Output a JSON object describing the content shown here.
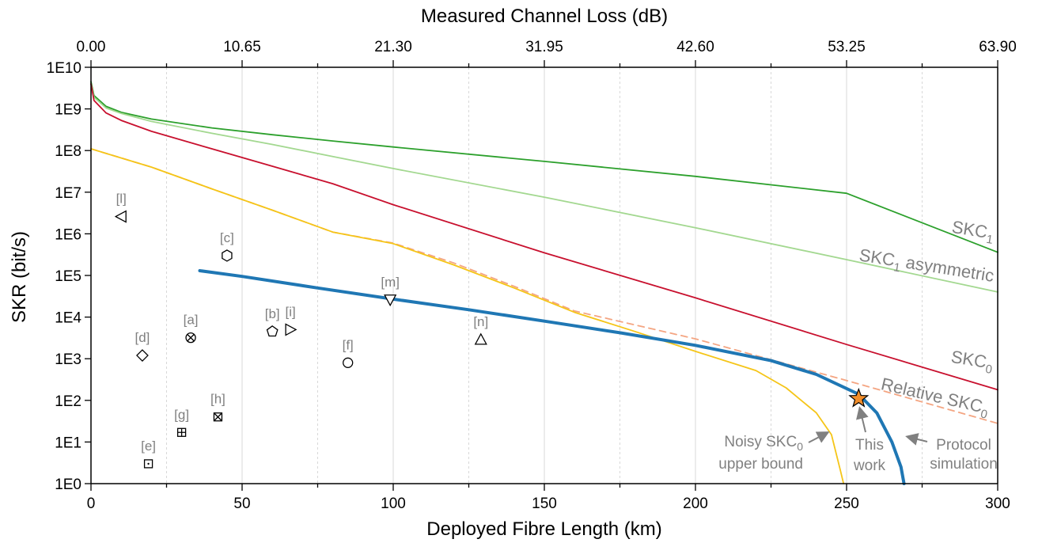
{
  "chart_data": {
    "type": "line",
    "xlabel": "Deployed Fibre Length (km)",
    "x2label": "Measured Channel Loss (dB)",
    "ylabel": "SKR (bit/s)",
    "xlim": [
      0,
      300
    ],
    "x2lim": [
      0,
      63.9
    ],
    "ylim": [
      1,
      10000000000
    ],
    "yscale": "log",
    "grid": "vertical",
    "x_ticks": [
      "0",
      "50",
      "100",
      "150",
      "200",
      "250",
      "300"
    ],
    "x2_ticks": [
      "0.00",
      "10.65",
      "21.30",
      "31.95",
      "42.60",
      "53.25",
      "63.90"
    ],
    "y_ticks": [
      "1E0",
      "1E1",
      "1E2",
      "1E3",
      "1E4",
      "1E5",
      "1E6",
      "1E7",
      "1E8",
      "1E9",
      "1E10"
    ],
    "series": [
      {
        "name": "SKC1",
        "label_text": "SKC",
        "label_sub": "1",
        "color": "#2ca02c",
        "points": [
          [
            0,
            4500000000
          ],
          [
            1,
            2100000000
          ],
          [
            5,
            1150000000
          ],
          [
            10,
            830000000
          ],
          [
            20,
            570000000
          ],
          [
            40,
            350000000
          ],
          [
            60,
            240000000
          ],
          [
            80,
            170000000
          ],
          [
            100,
            122000000
          ],
          [
            150,
            55000000
          ],
          [
            200,
            24000000
          ],
          [
            250,
            9400000
          ],
          [
            300,
            360000
          ]
        ]
      },
      {
        "name": "SKC1 asymmetric",
        "label_text": "SKC",
        "label_sub": "1",
        "label_suffix": " asymmetric",
        "color": "#a3d890",
        "points": [
          [
            0,
            4000000000
          ],
          [
            1,
            1900000000
          ],
          [
            5,
            1050000000
          ],
          [
            10,
            780000000
          ],
          [
            20,
            500000000
          ],
          [
            40,
            260000000
          ],
          [
            60,
            140000000
          ],
          [
            80,
            72000000
          ],
          [
            100,
            37000000
          ],
          [
            150,
            7600000
          ],
          [
            200,
            1400000
          ],
          [
            250,
            240000
          ],
          [
            300,
            40000
          ]
        ]
      },
      {
        "name": "SKC0",
        "label_text": "SKC",
        "label_sub": "0",
        "color": "#c8102e",
        "points": [
          [
            0,
            4000000000
          ],
          [
            1,
            1600000000
          ],
          [
            5,
            800000000
          ],
          [
            10,
            530000000
          ],
          [
            20,
            290000000
          ],
          [
            40,
            110000000
          ],
          [
            60,
            42000000
          ],
          [
            80,
            16000000
          ],
          [
            100,
            5000000
          ],
          [
            150,
            350000
          ],
          [
            200,
            29000
          ],
          [
            250,
            2200
          ],
          [
            300,
            180
          ]
        ]
      },
      {
        "name": "Relative SKC0",
        "label_text": "Relative SKC",
        "label_sub": "0",
        "color": "#f4a582",
        "dashed": true,
        "points": [
          [
            0,
            110000000
          ],
          [
            20,
            40000000
          ],
          [
            40,
            12000000
          ],
          [
            60,
            3700000
          ],
          [
            80,
            1100000
          ],
          [
            100,
            600000
          ],
          [
            120,
            200000
          ],
          [
            140,
            55000
          ],
          [
            160,
            14000
          ],
          [
            200,
            3000
          ],
          [
            250,
            300
          ],
          [
            300,
            28
          ]
        ]
      },
      {
        "name": "Noisy SKC0 upper bound",
        "label_text": "Noisy SKC",
        "label_sub": "0",
        "label_line2": "upper bound",
        "color": "#f5c518",
        "points": [
          [
            0,
            110000000
          ],
          [
            20,
            40000000
          ],
          [
            40,
            12000000
          ],
          [
            60,
            3700000
          ],
          [
            80,
            1100000
          ],
          [
            100,
            580000
          ],
          [
            120,
            180000
          ],
          [
            140,
            50000
          ],
          [
            160,
            13000
          ],
          [
            180,
            4500
          ],
          [
            200,
            1500
          ],
          [
            220,
            520
          ],
          [
            230,
            200
          ],
          [
            240,
            50
          ],
          [
            245,
            15
          ],
          [
            248,
            2
          ],
          [
            249,
            1
          ]
        ]
      },
      {
        "name": "Protocol simulation",
        "label_text": "Protocol",
        "label_line2": "simulation",
        "color": "#1f77b4",
        "thick": true,
        "points": [
          [
            36,
            130000
          ],
          [
            50,
            95000
          ],
          [
            75,
            50000
          ],
          [
            100,
            27000
          ],
          [
            125,
            15000
          ],
          [
            150,
            8000
          ],
          [
            175,
            4200
          ],
          [
            200,
            2100
          ],
          [
            225,
            900
          ],
          [
            240,
            420
          ],
          [
            254,
            140
          ],
          [
            260,
            50
          ],
          [
            265,
            10
          ],
          [
            268,
            2.5
          ],
          [
            269,
            1
          ]
        ]
      }
    ],
    "markers": [
      {
        "label": "[a]",
        "shape": "circle-x",
        "x": 33,
        "y": 3200
      },
      {
        "label": "[b]",
        "shape": "pentagon",
        "x": 60,
        "y": 4500
      },
      {
        "label": "[c]",
        "shape": "hexagon",
        "x": 45,
        "y": 300000
      },
      {
        "label": "[d]",
        "shape": "diamond",
        "x": 17,
        "y": 1200
      },
      {
        "label": "[e]",
        "shape": "square-dot",
        "x": 19,
        "y": 3
      },
      {
        "label": "[f]",
        "shape": "circle",
        "x": 85,
        "y": 800
      },
      {
        "label": "[g]",
        "shape": "square-plus",
        "x": 30,
        "y": 17
      },
      {
        "label": "[h]",
        "shape": "square-x",
        "x": 42,
        "y": 40
      },
      {
        "label": "[i]",
        "shape": "triangle-right",
        "x": 66,
        "y": 5000
      },
      {
        "label": "[l]",
        "shape": "triangle-left",
        "x": 10,
        "y": 2600000
      },
      {
        "label": "[m]",
        "shape": "triangle-down",
        "x": 99,
        "y": 26000
      },
      {
        "label": "[n]",
        "shape": "triangle-up",
        "x": 129,
        "y": 2900
      }
    ],
    "highlight": {
      "label_line1": "This",
      "label_line2": "work",
      "shape": "star",
      "color": "#f28e2b",
      "x": 254,
      "y": 110
    }
  }
}
